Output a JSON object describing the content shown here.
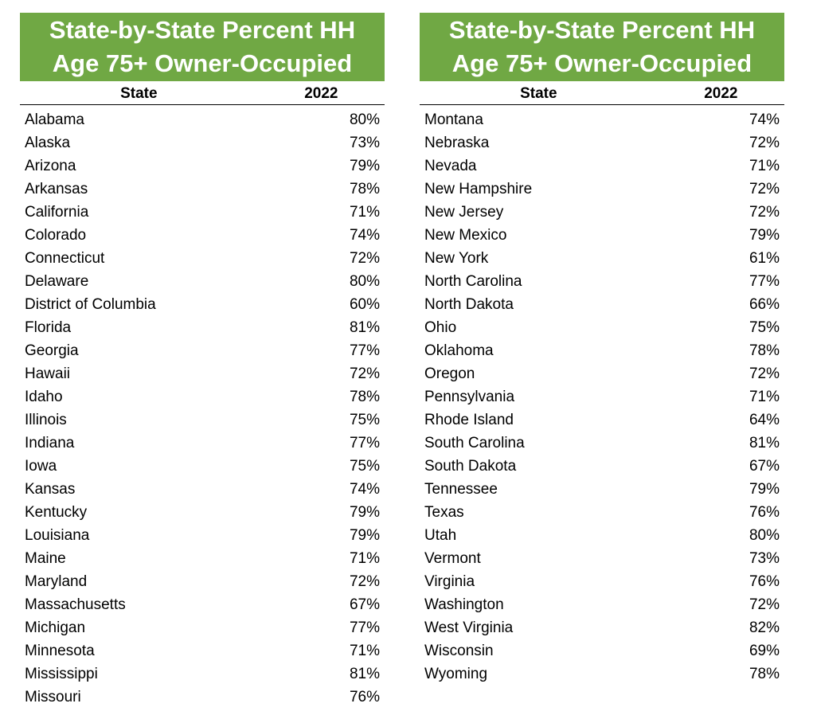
{
  "left": {
    "title_line1": "State-by-State Percent HH",
    "title_line2": "Age 75+ Owner-Occupied",
    "header_state": "State",
    "header_year": "2022",
    "rows": [
      {
        "state": "Alabama",
        "value": "80%"
      },
      {
        "state": "Alaska",
        "value": "73%"
      },
      {
        "state": "Arizona",
        "value": "79%"
      },
      {
        "state": "Arkansas",
        "value": "78%"
      },
      {
        "state": "California",
        "value": "71%"
      },
      {
        "state": "Colorado",
        "value": "74%"
      },
      {
        "state": "Connecticut",
        "value": "72%"
      },
      {
        "state": "Delaware",
        "value": "80%"
      },
      {
        "state": "District of Columbia",
        "value": "60%"
      },
      {
        "state": "Florida",
        "value": "81%"
      },
      {
        "state": "Georgia",
        "value": "77%"
      },
      {
        "state": "Hawaii",
        "value": "72%"
      },
      {
        "state": "Idaho",
        "value": "78%"
      },
      {
        "state": "Illinois",
        "value": "75%"
      },
      {
        "state": "Indiana",
        "value": "77%"
      },
      {
        "state": "Iowa",
        "value": "75%"
      },
      {
        "state": "Kansas",
        "value": "74%"
      },
      {
        "state": "Kentucky",
        "value": "79%"
      },
      {
        "state": "Louisiana",
        "value": "79%"
      },
      {
        "state": "Maine",
        "value": "71%"
      },
      {
        "state": "Maryland",
        "value": "72%"
      },
      {
        "state": "Massachusetts",
        "value": "67%"
      },
      {
        "state": "Michigan",
        "value": "77%"
      },
      {
        "state": "Minnesota",
        "value": "71%"
      },
      {
        "state": "Mississippi",
        "value": "81%"
      },
      {
        "state": "Missouri",
        "value": "76%"
      }
    ]
  },
  "right": {
    "title_line1": "State-by-State Percent HH",
    "title_line2": "Age 75+ Owner-Occupied",
    "header_state": "State",
    "header_year": "2022",
    "rows": [
      {
        "state": "Montana",
        "value": "74%"
      },
      {
        "state": "Nebraska",
        "value": "72%"
      },
      {
        "state": "Nevada",
        "value": "71%"
      },
      {
        "state": "New Hampshire",
        "value": "72%"
      },
      {
        "state": "New Jersey",
        "value": "72%"
      },
      {
        "state": "New Mexico",
        "value": "79%"
      },
      {
        "state": "New York",
        "value": "61%"
      },
      {
        "state": "North Carolina",
        "value": "77%"
      },
      {
        "state": "North Dakota",
        "value": "66%"
      },
      {
        "state": "Ohio",
        "value": "75%"
      },
      {
        "state": "Oklahoma",
        "value": "78%"
      },
      {
        "state": "Oregon",
        "value": "72%"
      },
      {
        "state": "Pennsylvania",
        "value": "71%"
      },
      {
        "state": "Rhode Island",
        "value": "64%"
      },
      {
        "state": "South Carolina",
        "value": "81%"
      },
      {
        "state": "South Dakota",
        "value": "67%"
      },
      {
        "state": "Tennessee",
        "value": "79%"
      },
      {
        "state": "Texas",
        "value": "76%"
      },
      {
        "state": "Utah",
        "value": "80%"
      },
      {
        "state": "Vermont",
        "value": "73%"
      },
      {
        "state": "Virginia",
        "value": "76%"
      },
      {
        "state": "Washington",
        "value": "72%"
      },
      {
        "state": "West Virginia",
        "value": "82%"
      },
      {
        "state": "Wisconsin",
        "value": "69%"
      },
      {
        "state": "Wyoming",
        "value": "78%"
      }
    ]
  },
  "colors": {
    "banner_green": "#70a844",
    "banner_text": "#ffffff"
  }
}
